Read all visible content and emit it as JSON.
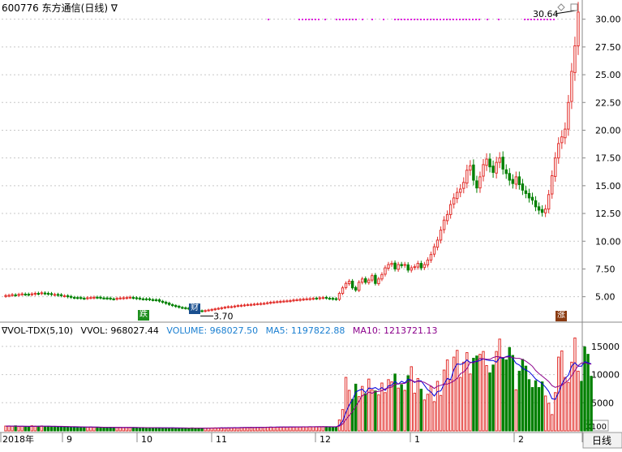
{
  "header": {
    "code": "600776",
    "name": "东方通信",
    "period": "(日线)",
    "toggle": "∇"
  },
  "price_panel": {
    "max_label": "30.64",
    "min_label": "3.70",
    "y_ticks": [
      "5.00",
      "7.50",
      "10.00",
      "12.50",
      "15.00",
      "17.50",
      "20.00",
      "22.50",
      "25.00",
      "27.50",
      "30.00"
    ]
  },
  "volume_panel": {
    "indicator": "∇VOL-TDX(5,10)",
    "vvol": "VVOL: 968027.44",
    "volume": "VOLUME: 968027.50",
    "ma5": "MA5: 1197822.88",
    "ma10": "MA10: 1213721.13",
    "y_ticks": [
      "5000",
      "10000",
      "15000"
    ],
    "unit": "X100"
  },
  "x_axis": {
    "labels": [
      "2018年",
      "9",
      "10",
      "11",
      "12",
      "1",
      "2"
    ],
    "period_button": "日线"
  },
  "badges": [
    {
      "text": "跌"
    },
    {
      "text": "财"
    },
    {
      "text": "涨"
    }
  ],
  "colors": {
    "up": "#e2302c",
    "down": "#008000",
    "ma5": "#0000dd",
    "ma10": "#8b008b",
    "grid": "#c8c8c8",
    "marker": "#e020e0"
  },
  "chart_data": {
    "type": "candlestick",
    "title": "600776 东方通信(日线)",
    "ylim": [
      3.0,
      31.0
    ],
    "volume_ylim": [
      0,
      17000
    ],
    "volume_unit": "X100",
    "x_labels": [
      "2018年",
      "9",
      "10",
      "11",
      "12",
      "1",
      "2"
    ],
    "series": [
      {
        "name": "close",
        "values": [
          5.1,
          5.12,
          5.18,
          5.15,
          5.2,
          5.25,
          5.22,
          5.18,
          5.25,
          5.3,
          5.28,
          5.35,
          5.3,
          5.25,
          5.22,
          5.2,
          5.15,
          5.1,
          5.08,
          5.0,
          4.95,
          4.92,
          4.9,
          4.88,
          4.85,
          4.9,
          4.92,
          4.95,
          4.93,
          4.9,
          4.88,
          4.85,
          4.82,
          4.8,
          4.85,
          4.88,
          4.9,
          4.92,
          4.95,
          4.9,
          4.85,
          4.82,
          4.8,
          4.78,
          4.75,
          4.72,
          4.7,
          4.6,
          4.5,
          4.4,
          4.3,
          4.2,
          4.12,
          4.05,
          4.0,
          3.95,
          3.9,
          3.85,
          3.8,
          3.75,
          3.7,
          3.75,
          3.8,
          3.85,
          3.9,
          3.95,
          4.0,
          4.05,
          4.1,
          4.1,
          4.15,
          4.2,
          4.22,
          4.25,
          4.28,
          4.3,
          4.33,
          4.36,
          4.38,
          4.4,
          4.45,
          4.5,
          4.52,
          4.55,
          4.58,
          4.6,
          4.62,
          4.65,
          4.7,
          4.72,
          4.75,
          4.78,
          4.8,
          4.82,
          4.85,
          4.85,
          4.9,
          4.92,
          4.88,
          4.85,
          4.8,
          4.78,
          5.3,
          5.8,
          6.2,
          6.4,
          5.8,
          5.6,
          6.3,
          6.6,
          6.3,
          6.5,
          6.9,
          6.2,
          6.6,
          7.0,
          7.6,
          7.9,
          8.0,
          7.5,
          7.9,
          7.8,
          7.9,
          7.4,
          7.6,
          7.7,
          8.0,
          7.6,
          7.9,
          8.3,
          8.8,
          9.5,
          10.1,
          11.0,
          11.9,
          12.4,
          13.3,
          13.9,
          14.4,
          14.7,
          15.3,
          16.4,
          16.8,
          15.5,
          14.8,
          15.8,
          16.9,
          17.4,
          16.7,
          16.2,
          17.1,
          17.5,
          16.5,
          16.1,
          15.5,
          15.2,
          15.8,
          15.1,
          14.6,
          14.3,
          13.9,
          13.7,
          13.1,
          12.8,
          12.6,
          12.9,
          14.2,
          15.9,
          17.5,
          18.8,
          19.4,
          20.1,
          22.5,
          25.3,
          27.6,
          30.64
        ]
      },
      {
        "name": "volume",
        "values": [
          860,
          880,
          830,
          900,
          780,
          820,
          790,
          760,
          910,
          850,
          820,
          880,
          790,
          810,
          760,
          800,
          730,
          760,
          700,
          690,
          720,
          680,
          650,
          670,
          640,
          660,
          690,
          630,
          650,
          610,
          620,
          600,
          640,
          590,
          610,
          630,
          580,
          600,
          620,
          590,
          570,
          560,
          580,
          550,
          570,
          540,
          560,
          550,
          520,
          530,
          510,
          540,
          500,
          480,
          520,
          510,
          490,
          530,
          500,
          470,
          480,
          500,
          510,
          520,
          540,
          530,
          560,
          550,
          570,
          560,
          590,
          580,
          600,
          610,
          620,
          640,
          600,
          630,
          650,
          640,
          660,
          680,
          650,
          670,
          690,
          700,
          680,
          710,
          690,
          720,
          700,
          730,
          710,
          740,
          720,
          730,
          750,
          760,
          740,
          720,
          700,
          690,
          1950,
          3800,
          9500,
          7200,
          5600,
          8300,
          6100,
          7900,
          6600,
          9200,
          7300,
          7100,
          6400,
          8500,
          6800,
          9100,
          8700,
          10100,
          7600,
          8200,
          7200,
          9800,
          11400,
          6700,
          9300,
          7400,
          5500,
          6500,
          7900,
          5200,
          8800,
          6300,
          10800,
          12600,
          9100,
          13100,
          14300,
          9500,
          12200,
          13900,
          10100,
          12900,
          13300,
          13600,
          14100,
          11600,
          10300,
          11700,
          14100,
          16300,
          12900,
          12600,
          14800,
          13400,
          7300,
          10600,
          12700,
          11500,
          9100,
          7700,
          8900,
          7700,
          8700,
          6200,
          4900,
          2900,
          6800,
          13100,
          14200,
          9500,
          8600,
          12200,
          16500,
          10600,
          8800,
          14900,
          13600,
          9700
        ]
      },
      {
        "name": "ma5",
        "values": [
          850,
          850,
          850,
          850,
          830,
          820,
          800,
          790,
          800,
          810,
          820,
          840,
          830,
          830,
          800,
          790,
          770,
          770,
          750,
          740,
          720,
          700,
          690,
          680,
          670,
          660,
          670,
          660,
          660,
          650,
          630,
          620,
          620,
          610,
          610,
          610,
          610,
          600,
          610,
          610,
          590,
          580,
          580,
          570,
          560,
          560,
          560,
          550,
          540,
          540,
          530,
          530,
          520,
          510,
          510,
          500,
          500,
          510,
          500,
          500,
          490,
          490,
          490,
          500,
          510,
          520,
          530,
          540,
          550,
          560,
          570,
          580,
          590,
          600,
          610,
          620,
          620,
          630,
          630,
          640,
          650,
          660,
          660,
          670,
          680,
          690,
          690,
          700,
          700,
          710,
          710,
          720,
          720,
          730,
          730,
          730,
          740,
          740,
          740,
          730,
          720,
          700,
          1000,
          1700,
          3300,
          4600,
          5500,
          6900,
          7200,
          7400,
          6800,
          7600,
          7500,
          7700,
          7300,
          7700,
          7200,
          8000,
          8100,
          8800,
          8300,
          8800,
          8500,
          9200,
          9000,
          8600,
          8900,
          8900,
          8100,
          7300,
          6900,
          6200,
          7000,
          7100,
          8300,
          9300,
          9100,
          10900,
          11900,
          11800,
          12000,
          12600,
          12100,
          12300,
          12300,
          12500,
          12800,
          12600,
          12500,
          12500,
          12200,
          13000,
          12900,
          13200,
          13300,
          12900,
          12000,
          11700,
          11100,
          10800,
          10500,
          9900,
          9200,
          8800,
          8400,
          7800,
          7000,
          5700,
          5600,
          6800,
          8300,
          9300,
          9900,
          11500,
          12100,
          11500,
          11500,
          12300,
          12100,
          11900
        ]
      },
      {
        "name": "ma10",
        "values": [
          850,
          850,
          850,
          850,
          840,
          840,
          830,
          820,
          810,
          810,
          810,
          820,
          820,
          820,
          820,
          820,
          810,
          810,
          790,
          780,
          760,
          750,
          740,
          720,
          700,
          690,
          690,
          680,
          670,
          660,
          650,
          640,
          640,
          630,
          630,
          620,
          620,
          620,
          610,
          610,
          600,
          590,
          590,
          580,
          580,
          570,
          570,
          560,
          560,
          550,
          540,
          540,
          530,
          530,
          520,
          520,
          510,
          510,
          510,
          500,
          500,
          500,
          500,
          500,
          500,
          500,
          510,
          510,
          520,
          530,
          540,
          550,
          560,
          570,
          580,
          590,
          600,
          610,
          620,
          630,
          630,
          640,
          650,
          650,
          660,
          670,
          680,
          680,
          690,
          700,
          700,
          710,
          710,
          720,
          720,
          730,
          730,
          730,
          740,
          740,
          730,
          730,
          860,
          1210,
          2020,
          2750,
          3400,
          4320,
          5250,
          6300,
          6430,
          6880,
          6680,
          6960,
          7030,
          7130,
          7480,
          7650,
          7780,
          8220,
          8350,
          8400,
          8440,
          8730,
          9030,
          8700,
          8800,
          8760,
          8610,
          8270,
          7980,
          7540,
          7940,
          8100,
          8330,
          8310,
          8540,
          8870,
          9310,
          10170,
          10460,
          11060,
          12220,
          12020,
          12480,
          12880,
          12780,
          12730,
          12700,
          13030,
          13190,
          13130,
          13020,
          13110,
          13150,
          13010,
          12900,
          12880,
          12690,
          12370,
          11960,
          11480,
          10740,
          10170,
          9730,
          9260,
          8760,
          8040,
          7730,
          7920,
          8100,
          8560,
          8980,
          9800,
          10670,
          11600,
          12050,
          12120,
          11920,
          11850
        ]
      }
    ]
  }
}
